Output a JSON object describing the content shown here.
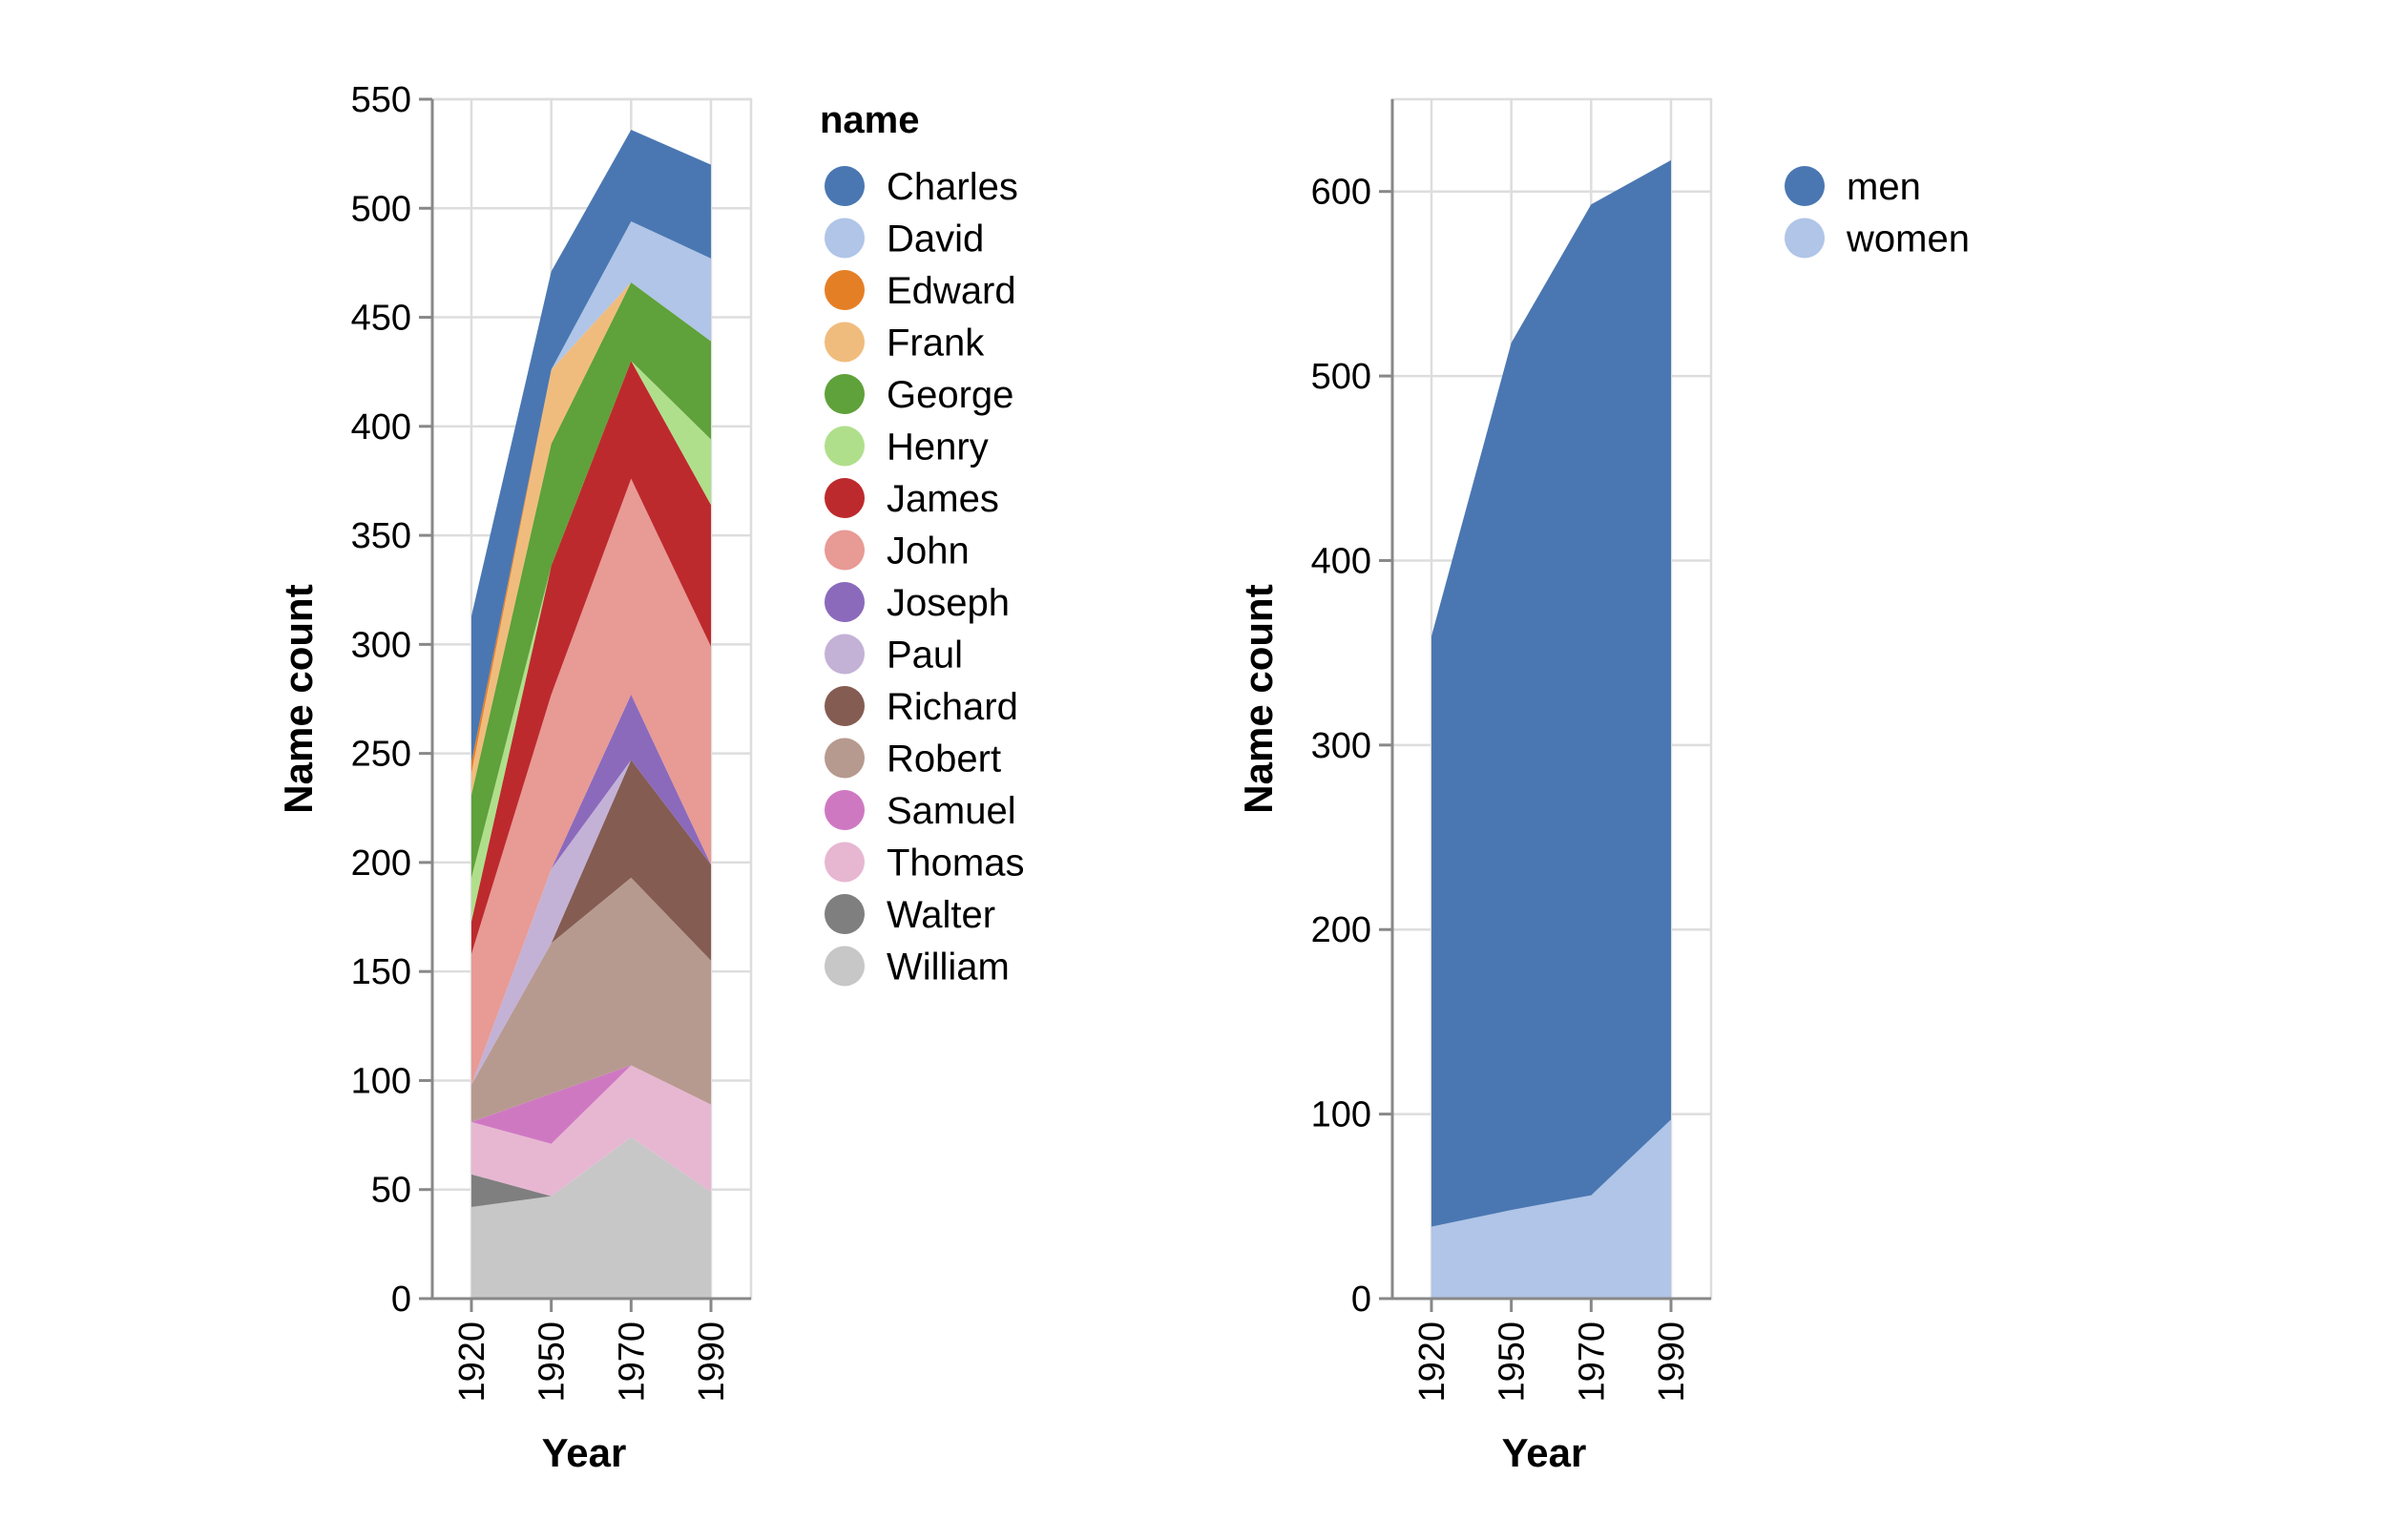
{
  "chart_data": [
    {
      "type": "area",
      "stacked": true,
      "xlabel": "Year",
      "ylabel": "Name count",
      "x": [
        "1920",
        "1950",
        "1970",
        "1990"
      ],
      "ylim": [
        0,
        550
      ],
      "yticks": [
        "0",
        "50",
        "100",
        "150",
        "200",
        "250",
        "300",
        "350",
        "400",
        "450",
        "500",
        "550"
      ],
      "legend_title": "name",
      "legend_position": "right",
      "grid": true,
      "series": [
        {
          "name": "William",
          "color": "#c7c7c7",
          "values": [
            42,
            47,
            74,
            49
          ]
        },
        {
          "name": "Walter",
          "color": "#7f7f7f",
          "values": [
            15,
            0,
            0,
            0
          ]
        },
        {
          "name": "Thomas",
          "color": "#e7b7d2",
          "values": [
            24,
            24,
            33,
            40
          ]
        },
        {
          "name": "Samuel",
          "color": "#cf78c2",
          "values": [
            0,
            23,
            0,
            0
          ]
        },
        {
          "name": "Robert",
          "color": "#b79a8f",
          "values": [
            17,
            69,
            86,
            66
          ]
        },
        {
          "name": "Richard",
          "color": "#845c52",
          "values": [
            0,
            0,
            54,
            44
          ]
        },
        {
          "name": "Paul",
          "color": "#c3b2d6",
          "values": [
            0,
            34,
            0,
            0
          ]
        },
        {
          "name": "Joseph",
          "color": "#8b6abc",
          "values": [
            0,
            0,
            30,
            0
          ]
        },
        {
          "name": "John",
          "color": "#e89a95",
          "values": [
            60,
            80,
            99,
            100
          ]
        },
        {
          "name": "James",
          "color": "#bd2a2d",
          "values": [
            15,
            59,
            54,
            65
          ]
        },
        {
          "name": "Henry",
          "color": "#b0df8c",
          "values": [
            20,
            0,
            0,
            30
          ]
        },
        {
          "name": "George",
          "color": "#5fa13a",
          "values": [
            38,
            56,
            36,
            45
          ]
        },
        {
          "name": "Frank",
          "color": "#f0bc7e",
          "values": [
            10,
            34,
            0,
            0
          ]
        },
        {
          "name": "Edward",
          "color": "#e57f26",
          "values": [
            5,
            0,
            0,
            0
          ]
        },
        {
          "name": "David",
          "color": "#b0c5e7",
          "values": [
            0,
            0,
            28,
            38
          ]
        },
        {
          "name": "Charles",
          "color": "#4a77b2",
          "values": [
            67,
            45,
            42,
            43
          ]
        }
      ]
    },
    {
      "type": "area",
      "stacked": true,
      "xlabel": "Year",
      "ylabel": "Name count",
      "x": [
        "1920",
        "1950",
        "1970",
        "1990"
      ],
      "ylim": [
        0,
        650
      ],
      "yticks": [
        "0",
        "100",
        "200",
        "300",
        "400",
        "500",
        "600"
      ],
      "legend_position": "right",
      "grid": true,
      "series": [
        {
          "name": "women",
          "color": "#b0c5e7",
          "values": [
            39,
            48,
            56,
            97
          ]
        },
        {
          "name": "men",
          "color": "#4a77b2",
          "values": [
            320,
            470,
            537,
            520
          ]
        }
      ]
    }
  ],
  "legends": {
    "names": [
      "Charles",
      "David",
      "Edward",
      "Frank",
      "George",
      "Henry",
      "James",
      "John",
      "Joseph",
      "Paul",
      "Richard",
      "Robert",
      "Samuel",
      "Thomas",
      "Walter",
      "William"
    ],
    "gender": [
      "men",
      "women"
    ]
  }
}
